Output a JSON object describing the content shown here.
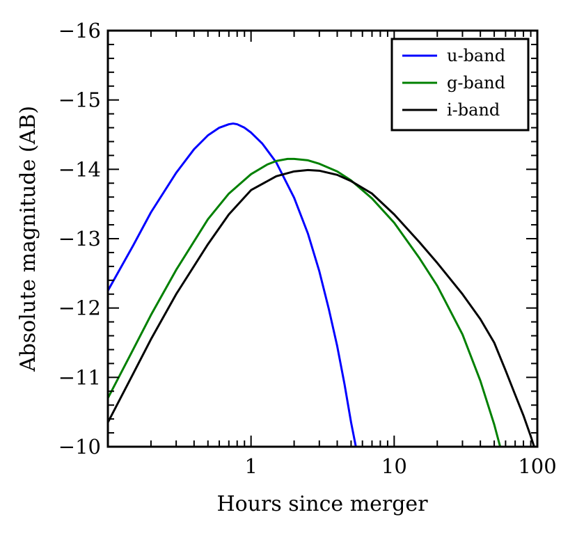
{
  "chart_data": {
    "type": "line",
    "xlabel": "Hours since merger",
    "ylabel": "Absolute magnitude (AB)",
    "xscale": "log",
    "xlim": [
      0.1,
      100
    ],
    "ylim": [
      -10,
      -16
    ],
    "y_inverted": true,
    "grid": false,
    "legend_position": "top-right",
    "x_tick_labels": [
      {
        "value": 1,
        "label": "1"
      },
      {
        "value": 10,
        "label": "10"
      },
      {
        "value": 100,
        "label": "100"
      }
    ],
    "y_tick_labels": [
      {
        "value": -16,
        "label": "−16"
      },
      {
        "value": -15,
        "label": "−15"
      },
      {
        "value": -14,
        "label": "−14"
      },
      {
        "value": -13,
        "label": "−13"
      },
      {
        "value": -12,
        "label": "−12"
      },
      {
        "value": -11,
        "label": "−11"
      },
      {
        "value": -10,
        "label": "−10"
      }
    ],
    "series": [
      {
        "name": "u-band",
        "color": "#0000ff",
        "x": [
          0.1,
          0.15,
          0.2,
          0.3,
          0.4,
          0.5,
          0.6,
          0.7,
          0.75,
          0.8,
          0.9,
          1.0,
          1.2,
          1.5,
          2.0,
          2.5,
          3.0,
          3.5,
          4.0,
          4.5,
          5.0,
          5.4
        ],
        "y": [
          -12.25,
          -12.9,
          -13.38,
          -13.95,
          -14.29,
          -14.49,
          -14.6,
          -14.65,
          -14.66,
          -14.65,
          -14.6,
          -14.53,
          -14.37,
          -14.1,
          -13.59,
          -13.07,
          -12.53,
          -11.98,
          -11.45,
          -10.9,
          -10.35,
          -10.0
        ]
      },
      {
        "name": "g-band",
        "color": "#008000",
        "x": [
          0.1,
          0.15,
          0.2,
          0.3,
          0.5,
          0.7,
          1.0,
          1.3,
          1.5,
          1.8,
          2.0,
          2.5,
          3.0,
          4.0,
          5.0,
          7.0,
          10.0,
          15.0,
          20.0,
          30.0,
          40.0,
          50.0,
          55.0
        ],
        "y": [
          -10.7,
          -11.4,
          -11.9,
          -12.55,
          -13.28,
          -13.65,
          -13.93,
          -14.07,
          -14.12,
          -14.15,
          -14.15,
          -14.13,
          -14.08,
          -13.97,
          -13.84,
          -13.58,
          -13.23,
          -12.72,
          -12.32,
          -11.62,
          -10.95,
          -10.32,
          -10.0
        ]
      },
      {
        "name": "i-band",
        "color": "#000000",
        "x": [
          0.1,
          0.15,
          0.2,
          0.3,
          0.5,
          0.7,
          1.0,
          1.5,
          2.0,
          2.5,
          3.0,
          4.0,
          5.0,
          7.0,
          10.0,
          15.0,
          20.0,
          30.0,
          40.0,
          50.0,
          60.0,
          70.0,
          80.0,
          90.0,
          95.0
        ],
        "y": [
          -10.35,
          -11.05,
          -11.55,
          -12.2,
          -12.92,
          -13.35,
          -13.7,
          -13.9,
          -13.97,
          -13.99,
          -13.98,
          -13.92,
          -13.83,
          -13.65,
          -13.35,
          -12.95,
          -12.65,
          -12.2,
          -11.84,
          -11.5,
          -11.1,
          -10.75,
          -10.45,
          -10.15,
          -10.0
        ]
      }
    ]
  }
}
